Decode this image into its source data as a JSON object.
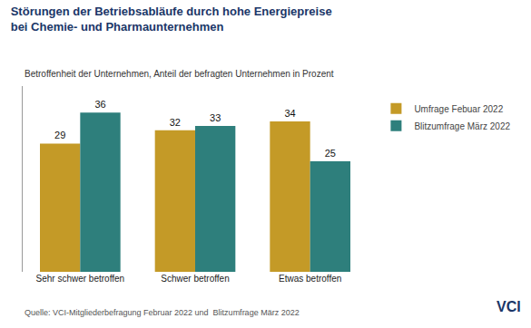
{
  "chart_data": {
    "type": "bar",
    "title": "Störungen der Betriebsabläufe durch hohe Energiepreise\nbei Chemie- und Pharmaunternehmen",
    "subtitle": "Betroffenheit der Unternehmen, Anteil der befragten Unternehmen in Prozent",
    "annotations": [
      "Quelle: VCI-Mitgliederbefragung Februar 2022 und  Blitzumfrage März 2022",
      "VCI"
    ],
    "categories": [
      "Sehr schwer betroffen",
      "Schwer betroffen",
      "Etwas betroffen"
    ],
    "series": [
      {
        "name": "Umfrage Febuar 2022",
        "color": "#C49A27",
        "values": [
          29,
          32,
          34
        ]
      },
      {
        "name": "Blitzumfrage März 2022",
        "color": "#2E7F7C",
        "values": [
          36,
          33,
          25
        ]
      }
    ],
    "ylim": [
      0,
      42
    ],
    "yticks": [],
    "tick_labels": "x",
    "grid": false,
    "legend": "right",
    "data_labels": true
  }
}
